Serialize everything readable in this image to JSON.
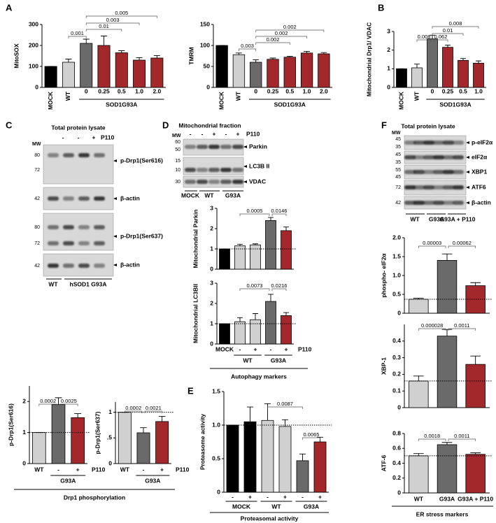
{
  "chart_data": [
    {
      "type": "bar",
      "ylabel": "MitoSOX",
      "categories": [
        "MOCK",
        "WT",
        "0",
        "0.25",
        "0.5",
        "1.0",
        "2.0"
      ],
      "values": [
        100,
        120,
        210,
        200,
        165,
        130,
        140
      ],
      "errors": [
        0,
        15,
        20,
        45,
        10,
        12,
        12
      ],
      "colors": [
        "#000000",
        "#d0d0d0",
        "#6a6a6a",
        "#a3282b",
        "#a3282b",
        "#a3282b",
        "#a3282b"
      ],
      "ylim": [
        0,
        300
      ],
      "yticks": [
        0,
        100,
        200,
        300
      ],
      "significance": [
        "0.001",
        "0.01",
        "0.003",
        "0.005"
      ],
      "groups": [
        "SOD1G93A"
      ]
    },
    {
      "type": "bar",
      "ylabel": "TMRM",
      "categories": [
        "MOCK",
        "WT",
        "0",
        "0.25",
        "0.5",
        "1.0",
        "2.0"
      ],
      "values": [
        100,
        78,
        60,
        67,
        72,
        82,
        80
      ],
      "errors": [
        0,
        4,
        6,
        3,
        2,
        4,
        3
      ],
      "colors": [
        "#000000",
        "#d0d0d0",
        "#6a6a6a",
        "#a3282b",
        "#a3282b",
        "#a3282b",
        "#a3282b"
      ],
      "ylim": [
        0,
        150
      ],
      "yticks": [
        0,
        50,
        100,
        150
      ],
      "significance": [
        "0.003",
        "0.002",
        "0.002",
        "0.002"
      ],
      "groups": [
        "SOD1G93A"
      ]
    },
    {
      "type": "bar",
      "ylabel": "Mitochondrial Drp1/ VDAC",
      "categories": [
        "MOCK",
        "WT",
        "0",
        "0.25",
        "0.5",
        "1.0"
      ],
      "values": [
        1,
        1.05,
        2.6,
        2.15,
        1.45,
        1.3
      ],
      "errors": [
        0,
        0.2,
        0.2,
        0.12,
        0.1,
        0.12
      ],
      "colors": [
        "#000000",
        "#d0d0d0",
        "#6a6a6a",
        "#a3282b",
        "#a3282b",
        "#a3282b"
      ],
      "ylim": [
        0,
        3
      ],
      "yticks": [
        0,
        1,
        2,
        3
      ],
      "significance": [
        "0.008",
        "0.062",
        "0.01",
        "0.008"
      ],
      "groups": [
        "SOD1G93A"
      ]
    },
    {
      "type": "bar",
      "ylabel": "p-Drp1(Ser616)",
      "categories": [
        "WT",
        "-",
        "+"
      ],
      "values": [
        1,
        1.9,
        1.48
      ],
      "errors": [
        0,
        0.22,
        0.13
      ],
      "colors": [
        "#d0d0d0",
        "#6a6a6a",
        "#a3282b"
      ],
      "ylim": [
        0,
        2.5
      ],
      "yticks": [
        0,
        1,
        2
      ],
      "reference_line": 1,
      "significance": [
        "0.0002",
        "0.0025"
      ],
      "groups": [
        "G93A"
      ],
      "condition_label": "P110"
    },
    {
      "type": "bar",
      "ylabel": "p-Drp1(Ser637)",
      "categories": [
        "WT",
        "-",
        "+"
      ],
      "values": [
        1,
        0.6,
        0.82
      ],
      "errors": [
        0,
        0.1,
        0.1
      ],
      "colors": [
        "#d0d0d0",
        "#6a6a6a",
        "#a3282b"
      ],
      "ylim": [
        0,
        1.2
      ],
      "yticks": [
        0,
        {
          "value": 0.5,
          "label": ".5"
        },
        1
      ],
      "reference_line": 1,
      "significance": [
        "0.0002",
        "0.0021"
      ],
      "groups": [
        "G93A"
      ],
      "condition_label": "P110"
    },
    {
      "type": "bar",
      "ylabel": "Mitochondrial Parkin",
      "values": [
        1,
        1.15,
        1.2,
        2.4,
        1.9
      ],
      "errors": [
        0,
        0.08,
        0.05,
        0.15,
        0.18
      ],
      "colors": [
        "#000000",
        "#d0d0d0",
        "#d0d0d0",
        "#6a6a6a",
        "#a3282b"
      ],
      "ylim": [
        0,
        3
      ],
      "yticks": [
        0,
        1,
        2,
        3
      ],
      "reference_line": 1,
      "significance": [
        "0.0005",
        "0.0146"
      ]
    },
    {
      "type": "bar",
      "ylabel": "Mitochondrial LC3BII",
      "categories": [
        "MOCK",
        "-",
        "+",
        "-",
        "+"
      ],
      "values": [
        1,
        1.1,
        1.2,
        2.1,
        1.4
      ],
      "errors": [
        0,
        0.2,
        0.3,
        0.35,
        0.15
      ],
      "colors": [
        "#000000",
        "#d0d0d0",
        "#d0d0d0",
        "#6a6a6a",
        "#a3282b"
      ],
      "ylim": [
        0,
        3
      ],
      "yticks": [
        0,
        1,
        2,
        3
      ],
      "reference_line": 1,
      "significance": [
        "0.0073",
        "0.0216"
      ],
      "groups": [
        "WT",
        "G93A"
      ],
      "condition_label": "P110"
    },
    {
      "type": "bar",
      "ylabel": "Proteasome activity",
      "categories": [
        "-",
        "+",
        "-",
        "+",
        "-",
        "+"
      ],
      "values": [
        1,
        1.05,
        1.07,
        0.98,
        0.47,
        0.75
      ],
      "errors": [
        0,
        0.22,
        0.25,
        0.1,
        0.1,
        0.07
      ],
      "colors": [
        "#000000",
        "#000000",
        "#d0d0d0",
        "#d0d0d0",
        "#6a6a6a",
        "#a3282b"
      ],
      "ylim": [
        0,
        1.5
      ],
      "yticks": [
        0,
        0.5,
        {
          "value": 1,
          "label": "1.0"
        },
        1.5
      ],
      "reference_line": 1,
      "significance": [
        "0.0087",
        "0.0065"
      ],
      "groups": [
        "MOCK",
        "WT",
        "G93A"
      ]
    },
    {
      "type": "bar",
      "ylabel": "phospho- eIF2α",
      "values": [
        0.37,
        1.4,
        0.73
      ],
      "errors": [
        0.03,
        0.17,
        0.08
      ],
      "colors": [
        "#d0d0d0",
        "#6a6a6a",
        "#a3282b"
      ],
      "ylim": [
        0,
        2
      ],
      "yticks": [
        0,
        0.5,
        {
          "value": 1,
          "label": "1.0"
        },
        1.5,
        {
          "value": 2,
          "label": "2.0"
        }
      ],
      "reference_line": 0.37,
      "significance": [
        "0.00003",
        "0.00062"
      ]
    },
    {
      "type": "bar",
      "ylabel": "XBP-1",
      "values": [
        0.16,
        0.43,
        0.26
      ],
      "errors": [
        0.03,
        0.04,
        0.05
      ],
      "colors": [
        "#d0d0d0",
        "#6a6a6a",
        "#a3282b"
      ],
      "ylim": [
        0,
        0.5
      ],
      "yticks": [
        0,
        0.1,
        0.2,
        0.3,
        0.4
      ],
      "reference_line": 0.16,
      "significance": [
        "0.000028",
        "0.0011"
      ]
    },
    {
      "type": "bar",
      "ylabel": "ATF-6",
      "categories": [
        "WT",
        "G93A",
        "G93A + P110"
      ],
      "values": [
        0.5,
        0.65,
        0.52
      ],
      "errors": [
        0.03,
        0.03,
        0.02
      ],
      "colors": [
        "#d0d0d0",
        "#6a6a6a",
        "#a3282b"
      ],
      "ylim": [
        0,
        0.8
      ],
      "yticks": [
        0,
        0.2,
        0.4,
        0.6,
        0.8
      ],
      "reference_line": 0.5,
      "significance": [
        "0.0018",
        "0.0011"
      ]
    }
  ],
  "panel_labels": [
    "A",
    "B",
    "C",
    "D",
    "E",
    "F"
  ],
  "section_labels": [
    "Drp1 phosphorylation",
    "Autophagy markers",
    "Proteasomal activity",
    "ER stress markers"
  ],
  "blots": [
    {
      "title": "Total protein lysate",
      "mw_label": "MW",
      "lanes": [
        "-",
        "-",
        "+"
      ],
      "condition": "P110",
      "mw": [
        80,
        72,
        42,
        80,
        72,
        42
      ],
      "bands": [
        "p-Drp1(Ser616)",
        "β-actin",
        "p-Drp1(Ser637)",
        "β-actin"
      ],
      "groups": [
        "WT",
        "hSOD1 G93A"
      ]
    },
    {
      "title": "Mitochondrial fraction",
      "mw_label": "MW",
      "lanes": [
        "-",
        "-",
        "+",
        "-",
        "+"
      ],
      "condition": "P110",
      "mw": [
        60,
        50,
        15,
        10,
        30
      ],
      "bands": [
        "Parkin",
        "LC3B II",
        "VDAC"
      ],
      "groups": [
        "MOCK",
        "WT",
        "G93A"
      ]
    },
    {
      "title": "Total protein lysate",
      "mw_label": "MW",
      "mw": [
        45,
        35,
        45,
        35,
        55,
        45,
        72,
        42
      ],
      "bands": [
        "p-eIF2α",
        "eIF2α",
        "XBP1",
        "ATF6",
        "β-actin"
      ],
      "groups": [
        "WT",
        "G93A",
        "G93A + P110"
      ]
    }
  ]
}
